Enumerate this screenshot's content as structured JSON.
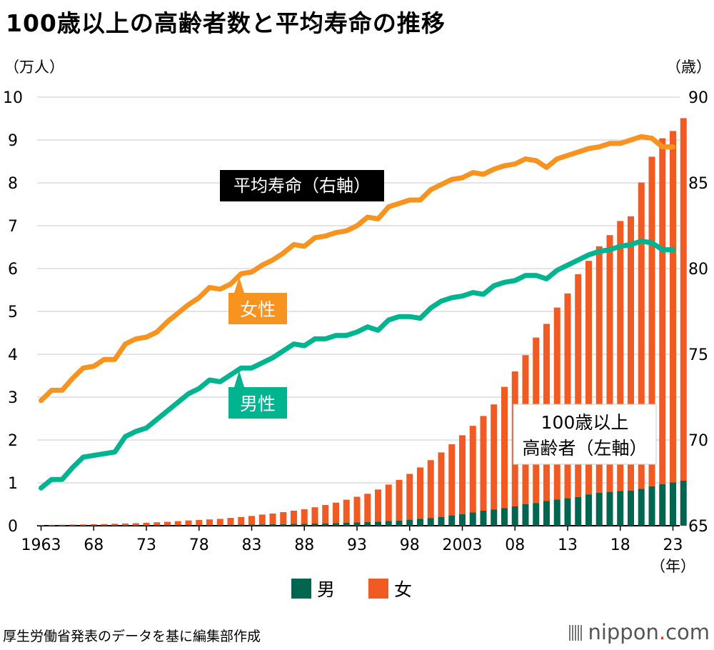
{
  "page": {
    "title": "100歳以上の高齢者数と平均寿命の推移",
    "source": "厚生労働省発表のデータを基に編集部作成",
    "brand": {
      "name": "nippon",
      "dot": ".",
      "tld": "com"
    }
  },
  "chart_data": {
    "type": "bar+line",
    "title": "100歳以上の高齢者数と平均寿命の推移",
    "years": [
      1963,
      1964,
      1965,
      1966,
      1967,
      1968,
      1969,
      1970,
      1971,
      1972,
      1973,
      1974,
      1975,
      1976,
      1977,
      1978,
      1979,
      1980,
      1981,
      1982,
      1983,
      1984,
      1985,
      1986,
      1987,
      1988,
      1989,
      1990,
      1991,
      1992,
      1993,
      1994,
      1995,
      1996,
      1997,
      1998,
      1999,
      2000,
      2001,
      2002,
      2003,
      2004,
      2005,
      2006,
      2007,
      2008,
      2009,
      2010,
      2011,
      2012,
      2013,
      2014,
      2015,
      2016,
      2017,
      2018,
      2019,
      2020,
      2021,
      2022,
      2023,
      2024
    ],
    "x_ticks": [
      "1963",
      "68",
      "73",
      "78",
      "83",
      "88",
      "93",
      "98",
      "2003",
      "08",
      "13",
      "18",
      "23"
    ],
    "x_unit": "（年）",
    "y_left": {
      "unit": "（万人）",
      "ticks": [
        "0",
        "1",
        "2",
        "3",
        "4",
        "5",
        "6",
        "7",
        "8",
        "9",
        "10"
      ],
      "range": [
        0,
        10
      ]
    },
    "y_right": {
      "unit": "（歳）",
      "ticks": [
        "65",
        "70",
        "75",
        "80",
        "85",
        "90"
      ],
      "range": [
        65,
        90
      ]
    },
    "bars": {
      "label": "100歳以上\n高齢者（左軸）",
      "series": [
        {
          "name": "男",
          "color": "#00664f",
          "values": [
            0.002,
            0.003,
            0.003,
            0.004,
            0.004,
            0.005,
            0.005,
            0.006,
            0.007,
            0.008,
            0.009,
            0.01,
            0.011,
            0.012,
            0.013,
            0.015,
            0.017,
            0.019,
            0.022,
            0.024,
            0.027,
            0.03,
            0.034,
            0.037,
            0.041,
            0.046,
            0.05,
            0.054,
            0.059,
            0.067,
            0.076,
            0.086,
            0.095,
            0.11,
            0.12,
            0.14,
            0.16,
            0.18,
            0.2,
            0.24,
            0.27,
            0.31,
            0.35,
            0.38,
            0.41,
            0.45,
            0.5,
            0.53,
            0.58,
            0.61,
            0.64,
            0.67,
            0.73,
            0.77,
            0.79,
            0.81,
            0.82,
            0.86,
            0.92,
            0.97,
            1.01,
            1.05
          ]
        },
        {
          "name": "女",
          "color": "#f15a22",
          "values": [
            0.013,
            0.016,
            0.019,
            0.022,
            0.025,
            0.03,
            0.033,
            0.04,
            0.045,
            0.05,
            0.06,
            0.07,
            0.08,
            0.095,
            0.11,
            0.12,
            0.13,
            0.14,
            0.16,
            0.18,
            0.2,
            0.23,
            0.25,
            0.28,
            0.31,
            0.34,
            0.38,
            0.43,
            0.48,
            0.54,
            0.6,
            0.66,
            0.75,
            0.85,
            0.95,
            1.07,
            1.2,
            1.35,
            1.51,
            1.66,
            1.84,
            2.02,
            2.21,
            2.45,
            2.83,
            3.15,
            3.48,
            3.86,
            4.13,
            4.48,
            4.78,
            5.2,
            5.45,
            5.75,
            5.99,
            6.3,
            6.4,
            7.15,
            7.69,
            8.07,
            8.2,
            8.46
          ]
        }
      ]
    },
    "lines": {
      "label": "平均寿命（右軸）",
      "series": [
        {
          "name": "女性",
          "color": "#f7931e",
          "values": [
            72.3,
            72.9,
            72.9,
            73.6,
            74.2,
            74.3,
            74.7,
            74.7,
            75.6,
            75.9,
            76.0,
            76.3,
            76.9,
            77.4,
            77.9,
            78.3,
            78.9,
            78.8,
            79.1,
            79.7,
            79.8,
            80.2,
            80.5,
            80.9,
            81.4,
            81.3,
            81.8,
            81.9,
            82.1,
            82.2,
            82.5,
            83.0,
            82.9,
            83.6,
            83.8,
            84.0,
            84.0,
            84.6,
            84.9,
            85.2,
            85.3,
            85.6,
            85.5,
            85.8,
            86.0,
            86.1,
            86.4,
            86.3,
            85.9,
            86.4,
            86.6,
            86.8,
            87.0,
            87.1,
            87.3,
            87.3,
            87.5,
            87.7,
            87.6,
            87.1,
            87.1
          ]
        },
        {
          "name": "男性",
          "color": "#00b48f",
          "values": [
            67.2,
            67.7,
            67.7,
            68.4,
            69.0,
            69.1,
            69.2,
            69.3,
            70.2,
            70.5,
            70.7,
            71.2,
            71.7,
            72.2,
            72.7,
            73.0,
            73.5,
            73.4,
            73.8,
            74.2,
            74.2,
            74.5,
            74.8,
            75.2,
            75.6,
            75.5,
            75.9,
            75.9,
            76.1,
            76.1,
            76.3,
            76.6,
            76.4,
            77.0,
            77.2,
            77.2,
            77.1,
            77.7,
            78.1,
            78.3,
            78.4,
            78.6,
            78.5,
            79.0,
            79.2,
            79.3,
            79.6,
            79.6,
            79.4,
            79.9,
            80.2,
            80.5,
            80.8,
            81.0,
            81.1,
            81.3,
            81.4,
            81.6,
            81.5,
            81.1,
            81.1
          ]
        }
      ]
    },
    "legend": {
      "placement": "bottom-center",
      "items": [
        "男",
        "女"
      ]
    },
    "grid": true
  }
}
